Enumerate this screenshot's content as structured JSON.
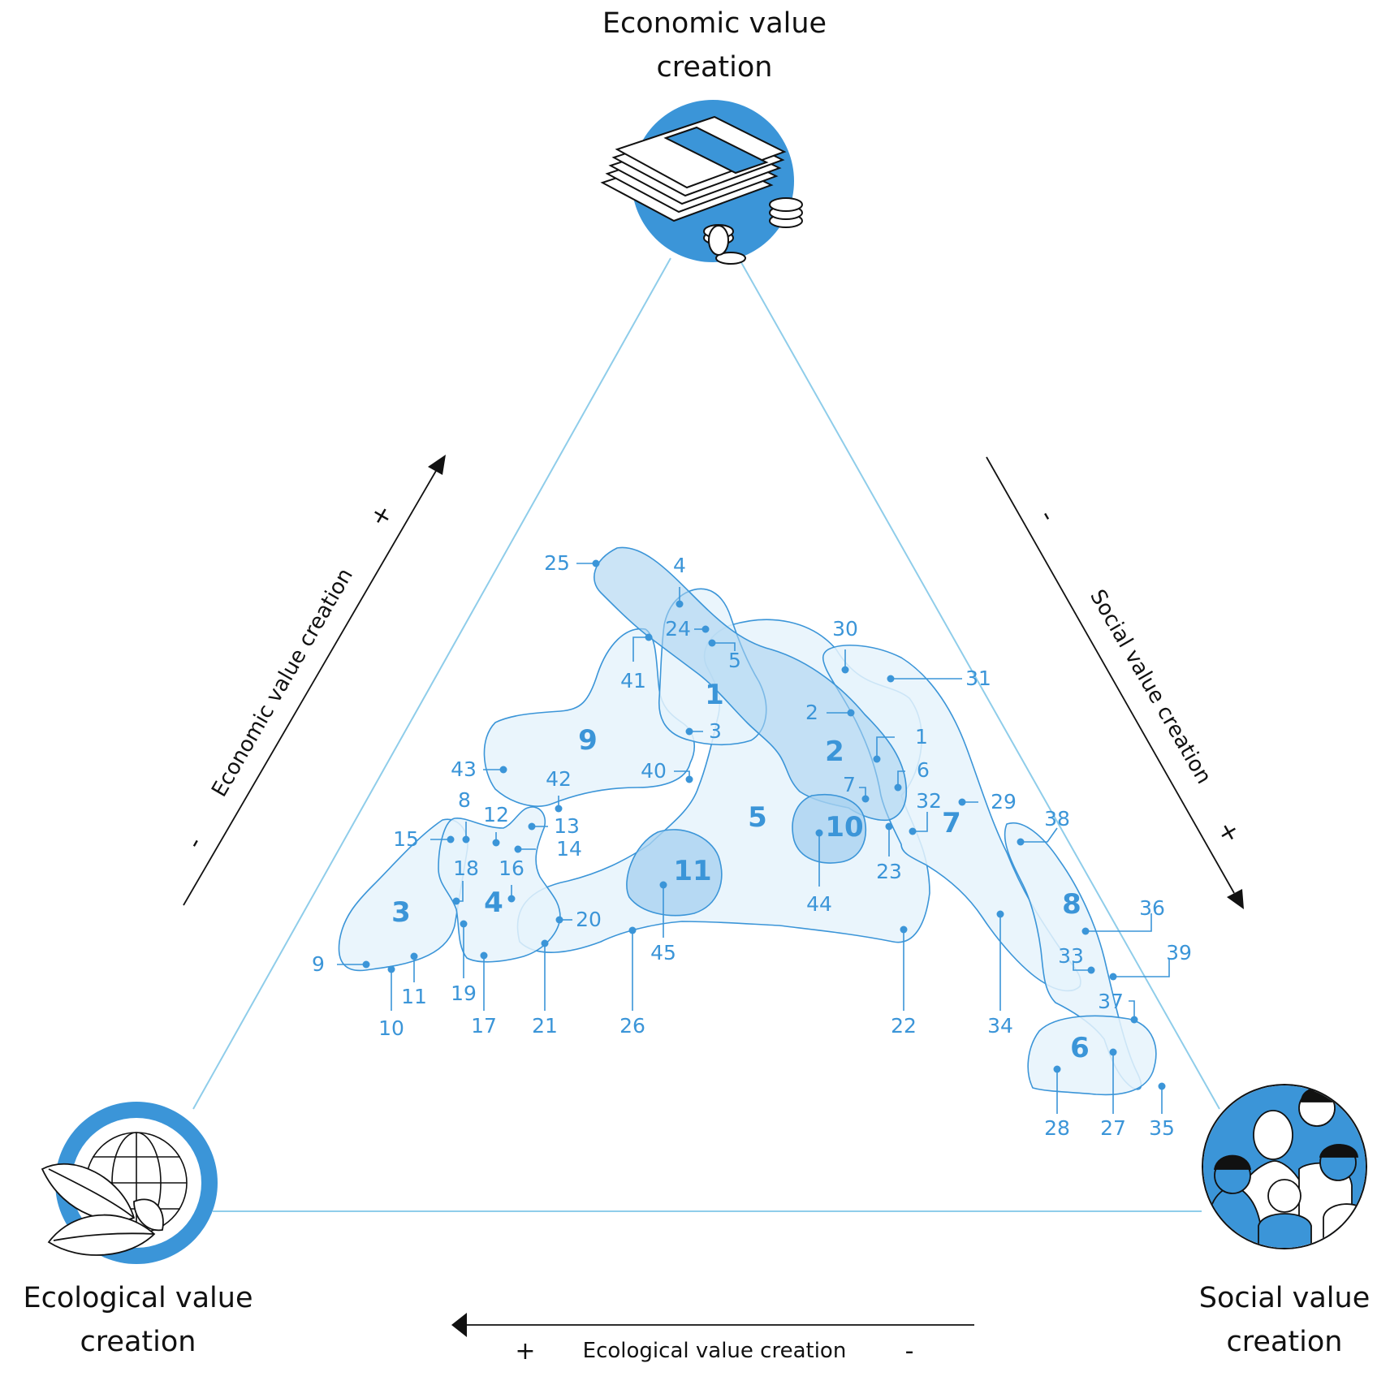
{
  "corners": {
    "economic": {
      "line1": "Economic value",
      "line2": "creation",
      "icon": "money-icon"
    },
    "ecological": {
      "line1": "Ecological value",
      "line2": "creation",
      "icon": "globe-leaves-icon"
    },
    "social": {
      "line1": "Social value",
      "line2": "creation",
      "icon": "people-icon"
    }
  },
  "axes": {
    "economic": {
      "label": "Economic value creation",
      "plus": "+",
      "minus": "-"
    },
    "social": {
      "label": "Social value creation",
      "plus": "+",
      "minus": "-"
    },
    "ecological": {
      "label": "Ecological value creation",
      "plus": "+",
      "minus": "-"
    }
  },
  "colors": {
    "accent": "#3b95d8",
    "triangle": "#8fcdea",
    "cluster_fill": "#e6f3fc",
    "cluster_fill_dark": "#a9d2f0"
  },
  "clusters": [
    "1",
    "2",
    "3",
    "4",
    "5",
    "6",
    "7",
    "8",
    "9",
    "10",
    "11"
  ],
  "points": [
    "1",
    "2",
    "3",
    "4",
    "5",
    "6",
    "7",
    "8",
    "9",
    "10",
    "11",
    "12",
    "13",
    "14",
    "15",
    "16",
    "17",
    "18",
    "19",
    "20",
    "21",
    "22",
    "23",
    "24",
    "25",
    "26",
    "27",
    "28",
    "29",
    "30",
    "31",
    "32",
    "33",
    "34",
    "35",
    "36",
    "37",
    "38",
    "39",
    "40",
    "41",
    "42",
    "43",
    "44",
    "45"
  ]
}
